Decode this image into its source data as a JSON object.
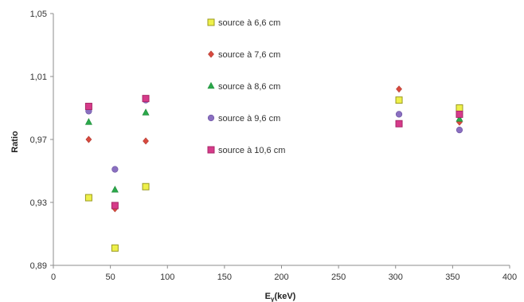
{
  "chart_data": {
    "type": "scatter",
    "xlabel_main": "E",
    "xlabel_sub": "γ",
    "xlabel_rest": "(keV)",
    "ylabel": "Ratio",
    "xlim": [
      0,
      400
    ],
    "ylim": [
      0.89,
      1.05
    ],
    "x_ticks": [
      "0",
      "50",
      "100",
      "150",
      "200",
      "250",
      "300",
      "350",
      "400"
    ],
    "y_ticks": [
      "0,89",
      "0,93",
      "0,97",
      "1,01",
      "1,05"
    ],
    "legend_position": "upper-middle",
    "series": [
      {
        "name": "source à 6,6 cm",
        "marker": "square",
        "color": "#eef04a",
        "stroke": "#9a9a20",
        "points": [
          [
            31,
            0.933
          ],
          [
            54,
            0.901
          ],
          [
            81,
            0.94
          ],
          [
            303,
            0.995
          ],
          [
            356,
            0.99
          ]
        ]
      },
      {
        "name": "source à 7,6 cm",
        "marker": "diamond",
        "color": "#d94a3f",
        "stroke": "#b03a30",
        "points": [
          [
            31,
            0.97
          ],
          [
            54,
            0.926
          ],
          [
            81,
            0.969
          ],
          [
            303,
            1.002
          ],
          [
            356,
            0.981
          ]
        ]
      },
      {
        "name": "source à 8,6 cm",
        "marker": "triangle",
        "color": "#2aa84a",
        "stroke": "#1d8a38",
        "points": [
          [
            31,
            0.981
          ],
          [
            54,
            0.938
          ],
          [
            81,
            0.987
          ],
          [
            356,
            0.983
          ]
        ]
      },
      {
        "name": "source à 9,6 cm",
        "marker": "circle",
        "color": "#8a6fc0",
        "stroke": "#6a52a0",
        "points": [
          [
            31,
            0.988
          ],
          [
            54,
            0.951
          ],
          [
            81,
            0.995
          ],
          [
            303,
            0.986
          ],
          [
            356,
            0.976
          ]
        ]
      },
      {
        "name": "source à 10,6 cm",
        "marker": "square",
        "color": "#d63a8a",
        "stroke": "#a82868",
        "points": [
          [
            31,
            0.991
          ],
          [
            54,
            0.928
          ],
          [
            81,
            0.996
          ],
          [
            303,
            0.98
          ],
          [
            356,
            0.986
          ]
        ]
      }
    ]
  }
}
